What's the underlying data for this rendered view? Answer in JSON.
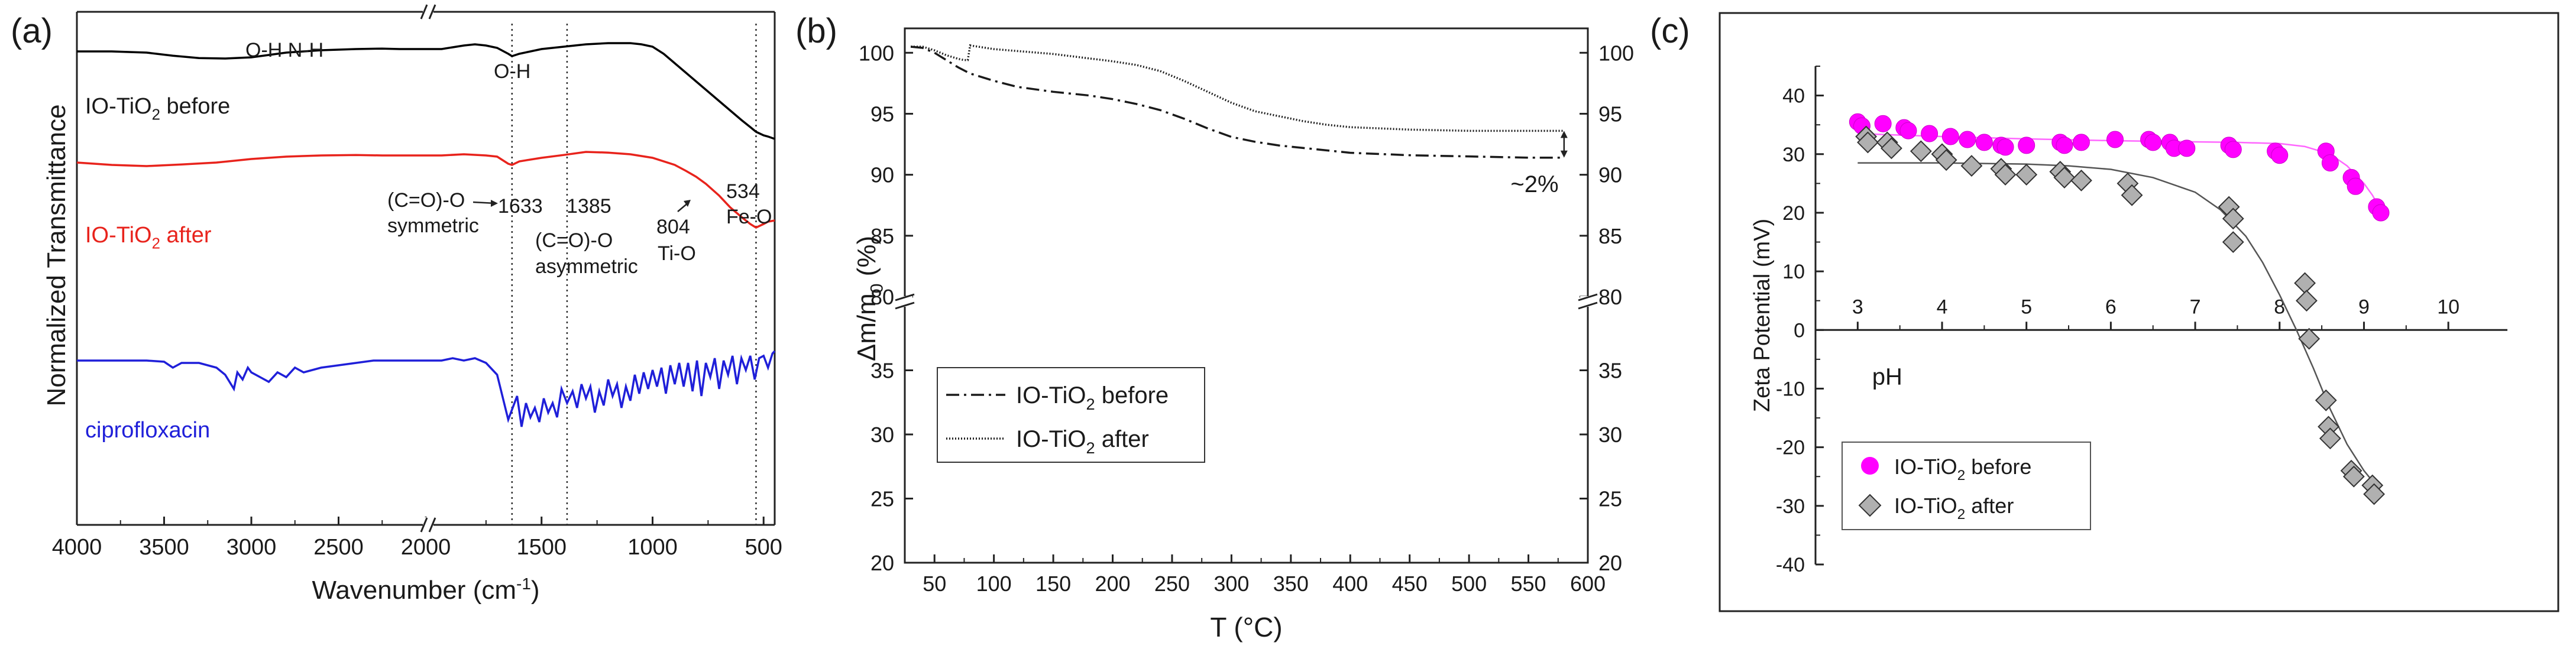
{
  "chart_data": [
    {
      "panel": "(a)",
      "type": "line",
      "title": "",
      "xlabel": "Wavenumber (cm",
      "xlabel_sup": "-1",
      "xlabel_tail": ")",
      "ylabel": "Normalized Transmittance",
      "x_segments": [
        [
          4000,
          2000
        ],
        [
          2000,
          450
        ]
      ],
      "x_ticks_left": [
        4000,
        3500,
        3000,
        2500,
        2000
      ],
      "x_ticks_right": [
        2000,
        1500,
        1000,
        500
      ],
      "vlines": [
        1633,
        1385,
        534
      ],
      "series": [
        {
          "name": "IO-TiO2 before",
          "label_main": "IO-TiO",
          "label_sub": "2",
          "label_tail": " before",
          "color": "#000000",
          "x": [
            4000,
            3800,
            3600,
            3450,
            3300,
            3150,
            3000,
            2800,
            2600,
            2400,
            2250,
            2150,
            2000,
            1950,
            1850,
            1800,
            1750,
            1700,
            1650,
            1633,
            1600,
            1500,
            1400,
            1300,
            1200,
            1100,
            1050,
            1000,
            950,
            900,
            850,
            800,
            750,
            700,
            650,
            600,
            560,
            534,
            500,
            480,
            450
          ],
          "y": [
            0.2,
            0.2,
            0.15,
            0.02,
            -0.08,
            -0.1,
            -0.05,
            0.15,
            0.25,
            0.3,
            0.32,
            0.3,
            0.3,
            0.3,
            0.45,
            0.5,
            0.45,
            0.35,
            0.1,
            0.0,
            0.1,
            0.3,
            0.4,
            0.5,
            0.55,
            0.55,
            0.5,
            0.4,
            0.1,
            -0.3,
            -0.7,
            -1.1,
            -1.5,
            -1.9,
            -2.3,
            -2.7,
            -3.0,
            -3.2,
            -3.35,
            -3.4,
            -3.5
          ]
        },
        {
          "name": "IO-TiO2 after",
          "label_main": "IO-TiO",
          "label_sub": "2",
          "label_tail": " after",
          "color": "#e8231c",
          "x": [
            4000,
            3800,
            3600,
            3400,
            3200,
            3000,
            2800,
            2600,
            2400,
            2250,
            2150,
            2000,
            1950,
            1850,
            1750,
            1700,
            1650,
            1633,
            1600,
            1500,
            1400,
            1300,
            1200,
            1100,
            1000,
            900,
            850,
            804,
            760,
            700,
            650,
            600,
            560,
            534,
            500,
            480,
            450
          ],
          "y": [
            0.0,
            -0.1,
            -0.15,
            -0.08,
            0.0,
            0.15,
            0.25,
            0.3,
            0.32,
            0.3,
            0.3,
            0.3,
            0.3,
            0.35,
            0.3,
            0.25,
            -0.05,
            -0.1,
            0.05,
            0.2,
            0.32,
            0.45,
            0.42,
            0.35,
            0.2,
            -0.1,
            -0.35,
            -0.6,
            -0.9,
            -1.4,
            -1.9,
            -2.3,
            -2.6,
            -2.75,
            -2.6,
            -2.5,
            -2.45
          ]
        },
        {
          "name": "ciprofloxacin",
          "label_main": "ciprofloxacin",
          "label_sub": "",
          "label_tail": "",
          "color": "#1f1fd9",
          "x": [
            4000,
            3800,
            3600,
            3500,
            3450,
            3400,
            3300,
            3200,
            3150,
            3100,
            3080,
            3050,
            3020,
            3000,
            2950,
            2900,
            2850,
            2800,
            2750,
            2700,
            2600,
            2500,
            2400,
            2300,
            2200,
            2100,
            2000,
            1950,
            1900,
            1850,
            1800,
            1750,
            1700,
            1650,
            1630,
            1610,
            1590,
            1570,
            1550,
            1530,
            1510,
            1490,
            1470,
            1450,
            1430,
            1410,
            1385,
            1360,
            1340,
            1320,
            1300,
            1280,
            1260,
            1240,
            1220,
            1200,
            1180,
            1160,
            1140,
            1120,
            1100,
            1080,
            1060,
            1040,
            1020,
            1000,
            980,
            960,
            940,
            920,
            900,
            880,
            860,
            840,
            820,
            800,
            780,
            760,
            740,
            720,
            700,
            680,
            660,
            640,
            620,
            600,
            580,
            560,
            540,
            520,
            500,
            480,
            460,
            450
          ],
          "y": [
            0.0,
            0.0,
            0.0,
            -0.05,
            -0.3,
            -0.1,
            -0.1,
            -0.3,
            -0.6,
            -1.2,
            -0.5,
            -0.8,
            -0.3,
            -0.5,
            -0.7,
            -0.9,
            -0.5,
            -0.7,
            -0.3,
            -0.5,
            -0.3,
            -0.2,
            -0.1,
            0.0,
            0.0,
            0.0,
            0.0,
            0.0,
            0.1,
            0.0,
            0.1,
            -0.1,
            -0.6,
            -2.5,
            -2.0,
            -1.5,
            -2.8,
            -1.8,
            -2.4,
            -2.0,
            -2.6,
            -1.6,
            -2.2,
            -1.8,
            -2.4,
            -1.2,
            -1.8,
            -1.3,
            -2.0,
            -1.0,
            -1.6,
            -1.1,
            -2.2,
            -1.3,
            -1.9,
            -0.8,
            -1.5,
            -1.0,
            -2.0,
            -1.1,
            -1.7,
            -0.6,
            -1.4,
            -0.5,
            -1.2,
            -0.4,
            -1.1,
            -0.3,
            -1.4,
            -0.2,
            -1.0,
            -0.1,
            -1.1,
            -0.1,
            -1.3,
            0.0,
            -1.5,
            -0.1,
            -0.7,
            0.1,
            -1.2,
            0.0,
            -0.6,
            0.2,
            -1.0,
            0.1,
            -0.4,
            0.2,
            -0.8,
            0.1,
            0.2,
            -0.3,
            0.3,
            0.4
          ]
        }
      ],
      "annotations": {
        "oh_nh": "O-H N-H",
        "oh": "O-H",
        "co_sym_1": "(C=O)-O",
        "co_sym_2": "symmetric",
        "val_1633": "1633",
        "val_1385": "1385",
        "co_asym_1": "(C=O)-O",
        "co_asym_2": "asymmetric",
        "val_804": "804",
        "tio": "Ti-O",
        "val_534": "534",
        "feo": "Fe-O"
      }
    },
    {
      "panel": "(b)",
      "type": "line",
      "xlabel": "T (°C)",
      "ylabel_main": "Δm/m",
      "ylabel_sub": "0",
      "ylabel_tail": " (%)",
      "x_range": [
        25,
        600
      ],
      "x_ticks": [
        50,
        100,
        150,
        200,
        250,
        300,
        350,
        400,
        450,
        500,
        550,
        600
      ],
      "y_segments": [
        [
          20,
          40
        ],
        [
          80,
          102
        ]
      ],
      "y_ticks_lower": [
        20,
        25,
        30,
        35
      ],
      "y_ticks_upper": [
        80,
        85,
        90,
        95,
        100
      ],
      "annotation": "~2%",
      "series": [
        {
          "name": "IO-TiO2 before",
          "label_main": "IO-TiO",
          "label_sub": "2",
          "label_tail": " before",
          "dash": "22,8,4,8",
          "x": [
            30,
            40,
            50,
            60,
            70,
            80,
            100,
            120,
            150,
            180,
            200,
            220,
            240,
            260,
            280,
            300,
            320,
            340,
            360,
            380,
            400,
            450,
            500,
            550,
            580
          ],
          "y": [
            100.5,
            100.4,
            100.0,
            99.4,
            98.8,
            98.3,
            97.7,
            97.2,
            96.8,
            96.5,
            96.2,
            95.8,
            95.3,
            94.6,
            93.8,
            93.1,
            92.7,
            92.4,
            92.2,
            92.0,
            91.8,
            91.6,
            91.5,
            91.4,
            91.4
          ]
        },
        {
          "name": "IO-TiO2 after",
          "label_main": "IO-TiO",
          "label_sub": "2",
          "label_tail": " after",
          "dash": "2,3",
          "x": [
            30,
            40,
            50,
            60,
            70,
            75,
            78,
            80,
            100,
            150,
            200,
            220,
            240,
            260,
            280,
            300,
            320,
            340,
            360,
            380,
            400,
            450,
            500,
            550,
            580
          ],
          "y": [
            100.5,
            100.5,
            100.2,
            99.8,
            99.5,
            99.4,
            99.4,
            100.6,
            100.3,
            99.9,
            99.3,
            99.0,
            98.5,
            97.7,
            96.8,
            95.9,
            95.2,
            94.8,
            94.4,
            94.1,
            93.9,
            93.7,
            93.6,
            93.6,
            93.6
          ]
        }
      ]
    },
    {
      "panel": "(c)",
      "type": "scatter",
      "xlabel": "pH",
      "ylabel": "Zeta Potential (mV)",
      "x_range": [
        2.5,
        10.7
      ],
      "y_range": [
        -40,
        45
      ],
      "x_ticks": [
        3,
        4,
        5,
        6,
        7,
        8,
        9,
        10
      ],
      "y_ticks": [
        40,
        30,
        20,
        10,
        0,
        -10,
        -20,
        -30,
        -40
      ],
      "series": [
        {
          "name": "IO-TiO2 before",
          "label_main": "IO-TiO",
          "label_sub": "2",
          "label_tail": " before",
          "color": "#ff00ff",
          "x": [
            3.0,
            3.05,
            3.3,
            3.55,
            3.6,
            3.85,
            4.1,
            4.3,
            4.5,
            4.7,
            4.75,
            5.0,
            5.4,
            5.45,
            5.65,
            6.05,
            6.45,
            6.5,
            6.7,
            6.75,
            6.9,
            7.4,
            7.45,
            7.95,
            8.0,
            8.55,
            8.6,
            8.85,
            8.9,
            9.15,
            9.2
          ],
          "y": [
            35.5,
            34.8,
            35.2,
            34.5,
            34.0,
            33.5,
            33.0,
            32.5,
            32.0,
            31.5,
            31.2,
            31.5,
            32.0,
            31.5,
            32.0,
            32.5,
            32.5,
            32.0,
            32.0,
            31.0,
            31.0,
            31.5,
            30.8,
            30.5,
            29.8,
            30.5,
            28.5,
            26.0,
            24.5,
            21.0,
            20.0
          ],
          "fit_x": [
            3.0,
            4.0,
            5.0,
            6.0,
            7.0,
            7.5,
            8.0,
            8.3,
            8.6,
            8.8,
            9.0,
            9.1,
            9.2
          ],
          "fit_y": [
            33.5,
            33.0,
            32.6,
            32.3,
            32.1,
            32.0,
            31.8,
            31.3,
            30.0,
            28.0,
            25.0,
            23.0,
            20.5
          ]
        },
        {
          "name": "IO-TiO2 after",
          "label_main": "IO-TiO",
          "label_sub": "2",
          "label_tail": " after",
          "color": "#b0b0b0",
          "x": [
            3.1,
            3.12,
            3.35,
            3.4,
            3.75,
            4.0,
            4.05,
            4.35,
            4.7,
            4.75,
            5.0,
            5.4,
            5.45,
            5.65,
            6.2,
            6.25,
            7.4,
            7.45,
            7.45,
            8.3,
            8.32,
            8.35,
            8.55,
            8.58,
            8.6,
            8.85,
            8.88,
            9.1,
            9.12
          ],
          "y": [
            33.0,
            32.0,
            32.0,
            31.0,
            30.5,
            30.0,
            29.0,
            28.0,
            27.5,
            26.5,
            26.5,
            27.0,
            26.0,
            25.5,
            25.0,
            23.0,
            21.0,
            19.0,
            15.0,
            8.0,
            5.0,
            -1.5,
            -12.0,
            -16.5,
            -18.5,
            -24.0,
            -25.0,
            -26.5,
            -28.0
          ],
          "fit_x": [
            3.0,
            4.0,
            5.0,
            5.5,
            6.0,
            6.5,
            7.0,
            7.3,
            7.6,
            7.8,
            8.0,
            8.2,
            8.4,
            8.6,
            8.8,
            9.0,
            9.2
          ],
          "fit_y": [
            28.5,
            28.5,
            28.3,
            28.0,
            27.4,
            26.0,
            23.5,
            20.5,
            16.0,
            11.5,
            6.0,
            0.0,
            -6.5,
            -13.5,
            -19.5,
            -24.0,
            -27.5
          ]
        }
      ]
    }
  ]
}
